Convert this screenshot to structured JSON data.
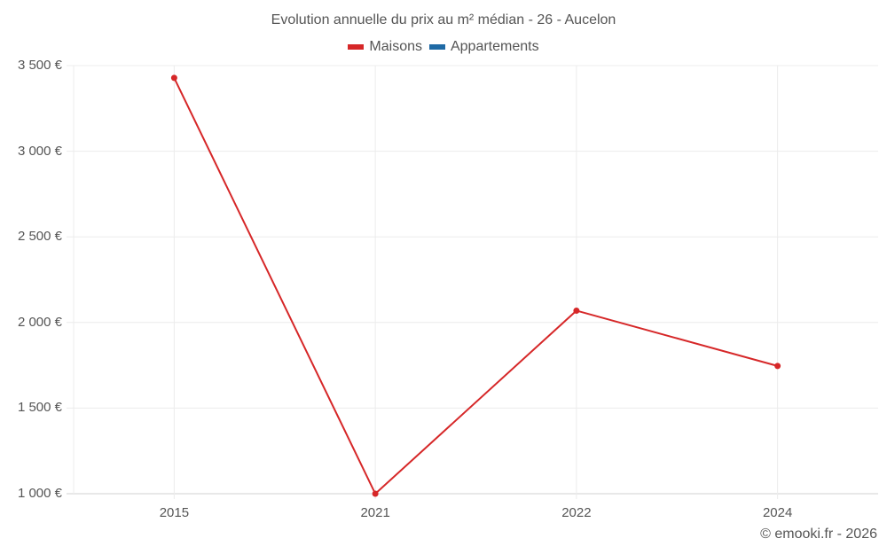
{
  "title": "Evolution annuelle du prix au m² médian - 26 - Aucelon",
  "legend": [
    {
      "label": "Maisons",
      "color": "#d62728"
    },
    {
      "label": "Appartements",
      "color": "#1f6aa5"
    }
  ],
  "credit": "© emooki.fr - 2026",
  "y_ticks": [
    "3 500 €",
    "3 000 €",
    "2 500 €",
    "2 000 €",
    "1 500 €",
    "1 000 €"
  ],
  "x_ticks": [
    "2015",
    "2021",
    "2022",
    "2024"
  ],
  "chart_data": {
    "type": "line",
    "title": "Evolution annuelle du prix au m² médian - 26 - Aucelon",
    "xlabel": "",
    "ylabel": "",
    "categories": [
      "2015",
      "2021",
      "2022",
      "2024"
    ],
    "series": [
      {
        "name": "Maisons",
        "color": "#d62728",
        "values": [
          3428,
          1000,
          2069,
          1746
        ]
      },
      {
        "name": "Appartements",
        "color": "#1f6aa5",
        "values": [
          null,
          null,
          null,
          null
        ]
      }
    ],
    "ylim": [
      1000,
      3500
    ],
    "y_tick_values": [
      1000,
      1500,
      2000,
      2500,
      3000,
      3500
    ],
    "grid": true,
    "legend_position": "top"
  }
}
